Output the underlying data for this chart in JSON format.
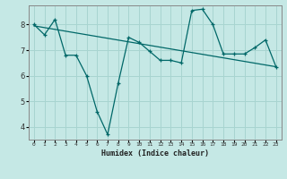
{
  "xlabel": "Humidex (Indice chaleur)",
  "background_color": "#c5e8e5",
  "grid_color": "#a8d4d0",
  "line_color": "#006868",
  "xlim": [
    -0.5,
    23.5
  ],
  "ylim": [
    3.5,
    8.75
  ],
  "yticks": [
    4,
    5,
    6,
    7,
    8
  ],
  "xtick_labels": [
    "0",
    "1",
    "2",
    "3",
    "4",
    "5",
    "6",
    "7",
    "8",
    "9",
    "10",
    "11",
    "12",
    "13",
    "14",
    "15",
    "16",
    "17",
    "18",
    "19",
    "20",
    "21",
    "22",
    "23"
  ],
  "series1_x": [
    0,
    1,
    2,
    3,
    4,
    5,
    6,
    7,
    8,
    9,
    10,
    11,
    12,
    13,
    14,
    15,
    16,
    17,
    18,
    19,
    20,
    21,
    22,
    23
  ],
  "series1_y": [
    8.0,
    7.6,
    8.2,
    6.8,
    6.8,
    6.0,
    4.6,
    3.7,
    5.7,
    7.5,
    7.3,
    6.95,
    6.6,
    6.6,
    6.5,
    8.55,
    8.6,
    8.0,
    6.85,
    6.85,
    6.85,
    7.1,
    7.4,
    6.35
  ],
  "series2_x": [
    0,
    23
  ],
  "series2_y": [
    7.95,
    6.35
  ]
}
